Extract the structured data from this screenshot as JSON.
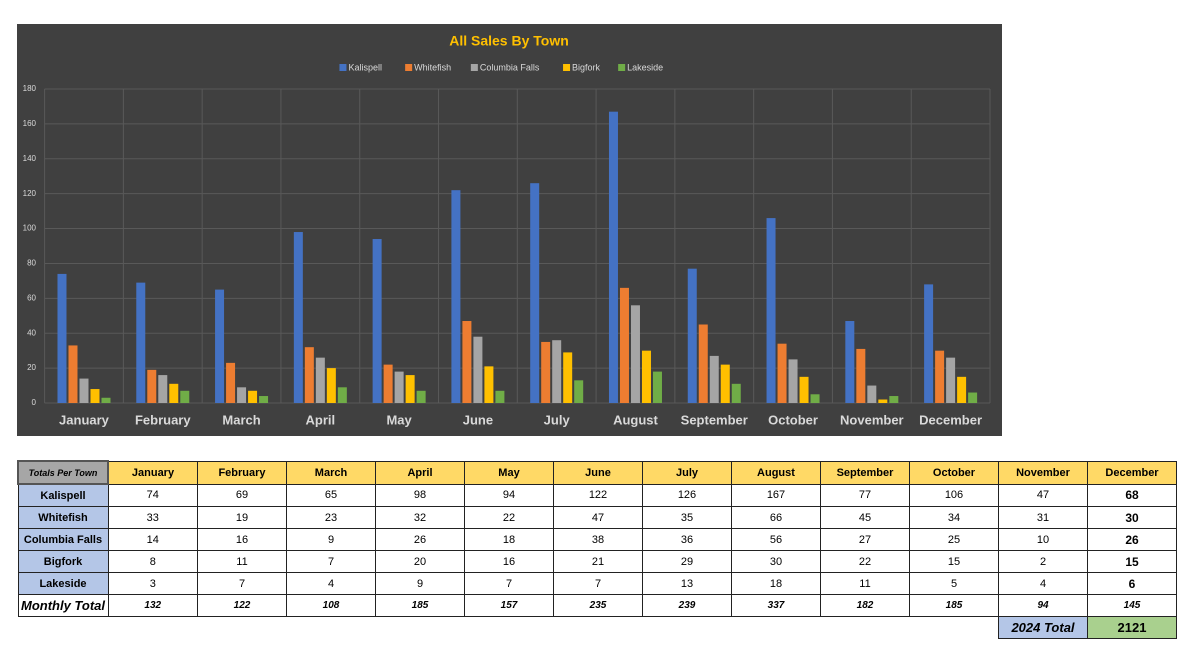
{
  "chart_data": {
    "type": "bar",
    "title": "All Sales By Town",
    "categories": [
      "January",
      "February",
      "March",
      "April",
      "May",
      "June",
      "July",
      "August",
      "September",
      "October",
      "November",
      "December"
    ],
    "series": [
      {
        "name": "Kalispell",
        "color": "#4472c4",
        "values": [
          74,
          69,
          65,
          98,
          94,
          122,
          126,
          167,
          77,
          106,
          47,
          68
        ]
      },
      {
        "name": "Whitefish",
        "color": "#ed7d31",
        "values": [
          33,
          19,
          23,
          32,
          22,
          47,
          35,
          66,
          45,
          34,
          31,
          30
        ]
      },
      {
        "name": "Columbia Falls",
        "color": "#a5a5a5",
        "values": [
          14,
          16,
          9,
          26,
          18,
          38,
          36,
          56,
          27,
          25,
          10,
          26
        ]
      },
      {
        "name": "Bigfork",
        "color": "#ffc000",
        "values": [
          8,
          11,
          7,
          20,
          16,
          21,
          29,
          30,
          22,
          15,
          2,
          15
        ]
      },
      {
        "name": "Lakeside",
        "color": "#70ad47",
        "values": [
          3,
          7,
          4,
          9,
          7,
          7,
          13,
          18,
          11,
          5,
          4,
          6
        ]
      }
    ],
    "ylim": [
      0,
      180
    ],
    "yticks": [
      0,
      20,
      40,
      60,
      80,
      100,
      120,
      140,
      160,
      180
    ],
    "grid": true,
    "legend": "top"
  },
  "table": {
    "corner": "Totals Per Town",
    "total_label": "Monthly Total",
    "monthly_totals": [
      132,
      122,
      108,
      185,
      157,
      235,
      239,
      337,
      182,
      185,
      94,
      145
    ],
    "grand_total_label": "2024 Total",
    "grand_total": 2121
  }
}
